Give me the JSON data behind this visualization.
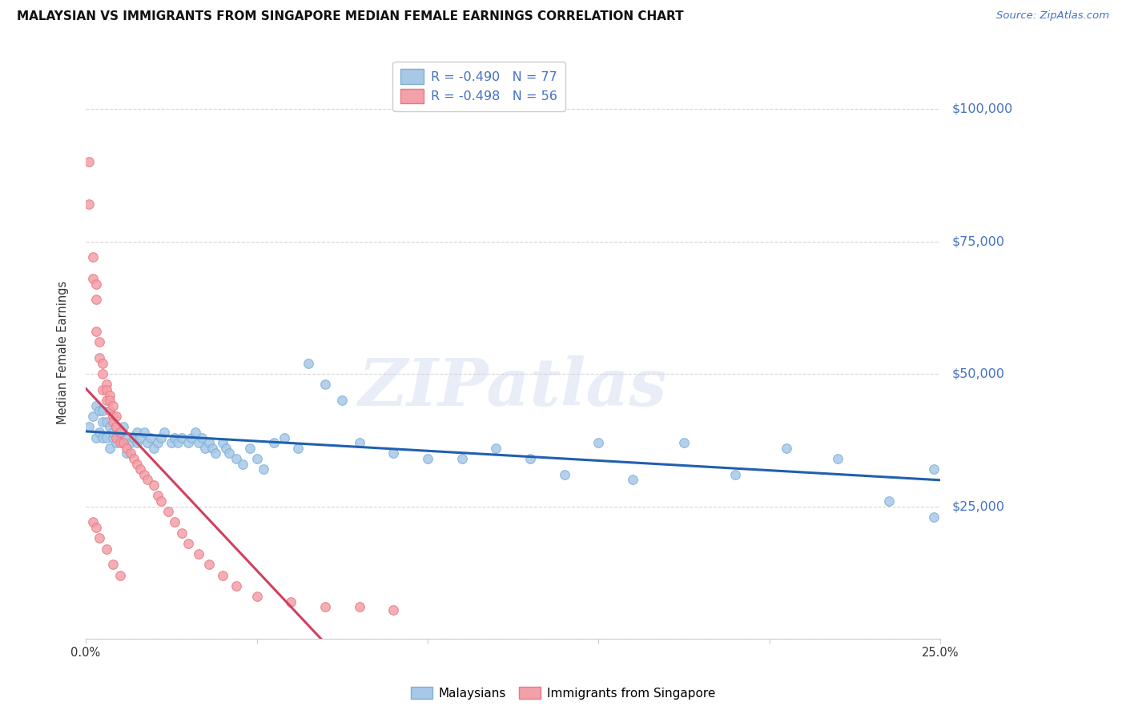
{
  "title": "MALAYSIAN VS IMMIGRANTS FROM SINGAPORE MEDIAN FEMALE EARNINGS CORRELATION CHART",
  "source": "Source: ZipAtlas.com",
  "ylabel": "Median Female Earnings",
  "xlim": [
    0.0,
    0.25
  ],
  "ylim": [
    0,
    108000
  ],
  "yticks": [
    0,
    25000,
    50000,
    75000,
    100000
  ],
  "ytick_labels": [
    "",
    "$25,000",
    "$50,000",
    "$75,000",
    "$100,000"
  ],
  "xticks": [
    0.0,
    0.05,
    0.1,
    0.15,
    0.2,
    0.25
  ],
  "xtick_labels": [
    "0.0%",
    "",
    "",
    "",
    "",
    "25.0%"
  ],
  "blue_scatter_color": "#a8c8e8",
  "blue_edge_color": "#7ab0d4",
  "pink_scatter_color": "#f4a0a8",
  "pink_edge_color": "#e87880",
  "trend_blue": "#2060b0",
  "trend_pink": "#d04060",
  "label_color": "#4472c4",
  "r_blue": "-0.490",
  "n_blue": "77",
  "r_pink": "-0.498",
  "n_pink": "56",
  "legend_label_blue": "Malaysians",
  "legend_label_pink": "Immigrants from Singapore",
  "watermark": "ZIPatlas",
  "background_color": "#ffffff",
  "grid_color": "#cccccc",
  "blue_x": [
    0.001,
    0.002,
    0.003,
    0.003,
    0.004,
    0.004,
    0.005,
    0.005,
    0.005,
    0.006,
    0.006,
    0.007,
    0.007,
    0.008,
    0.008,
    0.009,
    0.009,
    0.01,
    0.01,
    0.011,
    0.012,
    0.012,
    0.013,
    0.014,
    0.015,
    0.015,
    0.016,
    0.017,
    0.018,
    0.019,
    0.02,
    0.021,
    0.022,
    0.023,
    0.025,
    0.026,
    0.027,
    0.028,
    0.03,
    0.031,
    0.032,
    0.033,
    0.034,
    0.035,
    0.036,
    0.037,
    0.038,
    0.04,
    0.041,
    0.042,
    0.044,
    0.046,
    0.048,
    0.05,
    0.052,
    0.055,
    0.058,
    0.062,
    0.065,
    0.07,
    0.075,
    0.08,
    0.09,
    0.1,
    0.11,
    0.12,
    0.13,
    0.14,
    0.15,
    0.16,
    0.175,
    0.19,
    0.205,
    0.22,
    0.235,
    0.248,
    0.248
  ],
  "blue_y": [
    40000,
    42000,
    44000,
    38000,
    43000,
    39000,
    41000,
    38000,
    43000,
    41000,
    38000,
    36000,
    40000,
    38000,
    39000,
    40000,
    37000,
    38000,
    39000,
    40000,
    38000,
    35000,
    37000,
    38000,
    39000,
    37000,
    38000,
    39000,
    37000,
    38000,
    36000,
    37000,
    38000,
    39000,
    37000,
    38000,
    37000,
    38000,
    37000,
    38000,
    39000,
    37000,
    38000,
    36000,
    37000,
    36000,
    35000,
    37000,
    36000,
    35000,
    34000,
    33000,
    36000,
    34000,
    32000,
    37000,
    38000,
    36000,
    52000,
    48000,
    45000,
    37000,
    35000,
    34000,
    34000,
    36000,
    34000,
    31000,
    37000,
    30000,
    37000,
    31000,
    36000,
    34000,
    26000,
    32000,
    23000
  ],
  "pink_x": [
    0.001,
    0.001,
    0.002,
    0.002,
    0.003,
    0.003,
    0.003,
    0.004,
    0.004,
    0.005,
    0.005,
    0.005,
    0.006,
    0.006,
    0.006,
    0.007,
    0.007,
    0.007,
    0.008,
    0.008,
    0.008,
    0.009,
    0.009,
    0.009,
    0.01,
    0.01,
    0.011,
    0.012,
    0.013,
    0.014,
    0.015,
    0.016,
    0.017,
    0.018,
    0.02,
    0.021,
    0.022,
    0.024,
    0.026,
    0.028,
    0.03,
    0.033,
    0.036,
    0.04,
    0.044,
    0.05,
    0.06,
    0.07,
    0.08,
    0.09,
    0.002,
    0.003,
    0.004,
    0.006,
    0.008,
    0.01
  ],
  "pink_y": [
    90000,
    82000,
    72000,
    68000,
    67000,
    64000,
    58000,
    56000,
    53000,
    52000,
    50000,
    47000,
    48000,
    47000,
    45000,
    46000,
    45000,
    43000,
    44000,
    42000,
    41000,
    42000,
    40000,
    38000,
    39000,
    37000,
    37000,
    36000,
    35000,
    34000,
    33000,
    32000,
    31000,
    30000,
    29000,
    27000,
    26000,
    24000,
    22000,
    20000,
    18000,
    16000,
    14000,
    12000,
    10000,
    8000,
    7000,
    6000,
    6000,
    5500,
    22000,
    21000,
    19000,
    17000,
    14000,
    12000
  ]
}
